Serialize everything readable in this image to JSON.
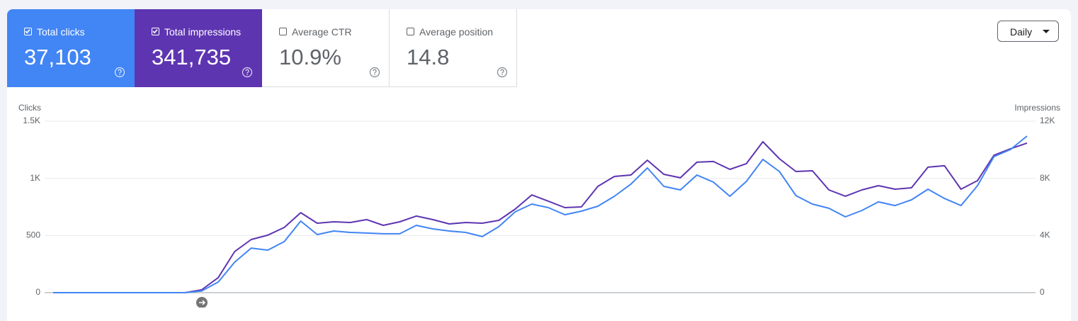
{
  "metrics": [
    {
      "label": "Total clicks",
      "value": "37,103"
    },
    {
      "label": "Total impressions",
      "value": "341,735"
    },
    {
      "label": "Average CTR",
      "value": "10.9%"
    },
    {
      "label": "Average position",
      "value": "14.8"
    }
  ],
  "granularity": "Daily",
  "chart_data": {
    "type": "line",
    "ylabel": "Clicks",
    "y2label": "Impressions",
    "ylim": [
      0,
      1500
    ],
    "yticks": [
      0,
      500,
      {
        "value": 1000,
        "label": "1K"
      },
      {
        "value": 1500,
        "label": "1.5K"
      }
    ],
    "y2lim": [
      0,
      12000
    ],
    "y2ticks": [
      0,
      {
        "value": 4000,
        "label": "4K"
      },
      {
        "value": 8000,
        "label": "8K"
      },
      {
        "value": 12000,
        "label": "12K"
      }
    ],
    "grid": true,
    "series": [
      {
        "name": "Total clicks",
        "color": "#4285f4",
        "values": [
          0,
          0,
          0,
          0,
          0,
          0,
          0,
          0,
          0,
          15,
          93,
          267,
          390,
          372,
          446,
          626,
          508,
          539,
          527,
          521,
          515,
          515,
          589,
          558,
          539,
          527,
          490,
          577,
          707,
          775,
          744,
          682,
          713,
          756,
          843,
          949,
          1091,
          930,
          899,
          1029,
          967,
          843,
          973,
          1166,
          1060,
          849,
          775,
          738,
          663,
          719,
          794,
          762,
          812,
          905,
          824,
          762,
          936,
          1190,
          1252,
          1370
        ]
      },
      {
        "name": "Total impressions",
        "color": "#5e35b1",
        "axis": "y2",
        "values": [
          0,
          0,
          0,
          0,
          0,
          0,
          0,
          0,
          0,
          200,
          1050,
          2880,
          3720,
          4020,
          4560,
          5600,
          4860,
          4960,
          4910,
          5110,
          4710,
          4960,
          5360,
          5110,
          4810,
          4910,
          4860,
          5060,
          5850,
          6840,
          6400,
          5950,
          6000,
          7440,
          8130,
          8230,
          9270,
          8280,
          8040,
          9130,
          9180,
          8630,
          9030,
          10560,
          9370,
          8480,
          8530,
          7190,
          6750,
          7190,
          7490,
          7240,
          7340,
          8780,
          8880,
          7240,
          7840,
          9620,
          10070,
          10470
        ]
      }
    ]
  }
}
